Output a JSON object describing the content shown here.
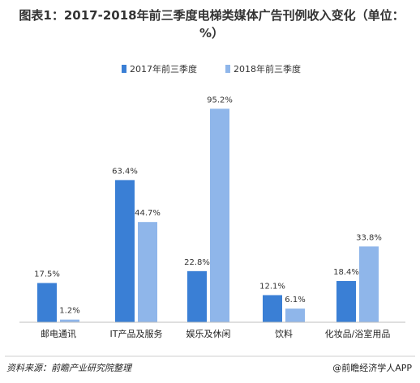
{
  "title": "图表1：2017-2018年前三季度电梯类媒体广告刊例收入变化（单位：%）",
  "source": "资料来源：前瞻产业研究院整理",
  "brand": "@前瞻经济学人APP",
  "colors": {
    "series1": "#3a7fd5",
    "series2": "#8fb6ea"
  },
  "chart_data": {
    "type": "bar",
    "categories": [
      "邮电通讯",
      "IT产品及服务",
      "娱乐及休闲",
      "饮料",
      "化妆品/浴室用品"
    ],
    "series": [
      {
        "name": "2017年前三季度",
        "values": [
          17.5,
          63.4,
          22.8,
          12.1,
          18.4
        ]
      },
      {
        "name": "2018年前三季度",
        "values": [
          1.2,
          44.7,
          95.2,
          6.1,
          33.8
        ]
      }
    ],
    "unit": "%",
    "ylim": [
      0,
      100
    ],
    "grid": false,
    "legend_position": "top-center"
  }
}
